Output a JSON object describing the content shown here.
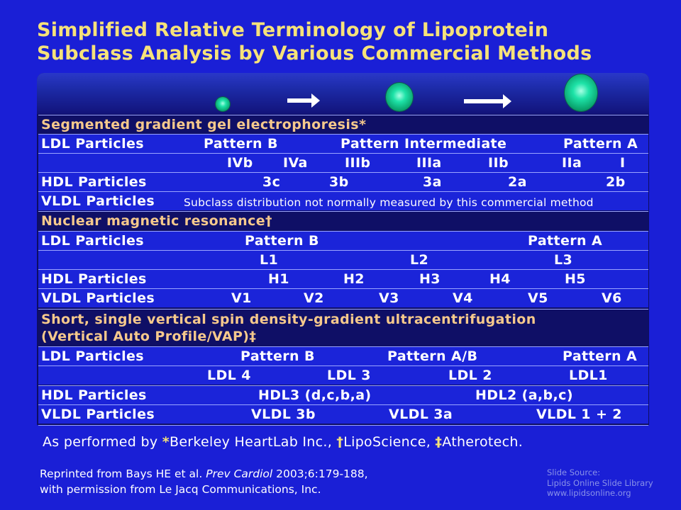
{
  "title": {
    "line1": "Simplified Relative Terminology of Lipoprotein",
    "line2": "Subclass Analysis by Various Commercial Methods"
  },
  "sections": [
    {
      "heading": "Segmented gradient gel electrophoresis*",
      "rows": [
        {
          "label": "LDL Particles",
          "cells": [
            "Pattern B",
            "Pattern Intermediate",
            "Pattern A"
          ]
        },
        {
          "label": "",
          "cells": [
            "IVb",
            "IVa",
            "IIIb",
            "IIIa",
            "IIb",
            "IIa",
            "I"
          ]
        },
        {
          "label": "HDL Particles",
          "cells": [
            "3c",
            "3b",
            "3a",
            "2a",
            "2b"
          ]
        },
        {
          "label": "VLDL Particles",
          "cells": [
            "Subclass distribution not normally measured by this commercial method"
          ]
        }
      ]
    },
    {
      "heading": "Nuclear magnetic resonance†",
      "rows": [
        {
          "label": "LDL Particles",
          "cells": [
            "Pattern B",
            "Pattern A"
          ]
        },
        {
          "label": "",
          "cells": [
            "L1",
            "L2",
            "L3"
          ]
        },
        {
          "label": "HDL Particles",
          "cells": [
            "H1",
            "H2",
            "H3",
            "H4",
            "H5"
          ]
        },
        {
          "label": "VLDL Particles",
          "cells": [
            "V1",
            "V2",
            "V3",
            "V4",
            "V5",
            "V6"
          ]
        }
      ]
    },
    {
      "heading_line1": "Short, single vertical spin density-gradient ultracentrifugation",
      "heading_line2": "(Vertical Auto Profile/VAP)‡",
      "rows": [
        {
          "label": "LDL Particles",
          "cells": [
            "Pattern B",
            "Pattern A/B",
            "Pattern A"
          ]
        },
        {
          "label": "",
          "cells": [
            "LDL 4",
            "LDL 3",
            "LDL 2",
            "LDL1"
          ]
        },
        {
          "label": "HDL Particles",
          "cells": [
            "HDL3 (d,c,b,a)",
            "HDL2 (a,b,c)"
          ]
        },
        {
          "label": "VLDL Particles",
          "cells": [
            "VLDL 3b",
            "VLDL 3a",
            "VLDL 1 + 2"
          ]
        }
      ]
    }
  ],
  "footnote": {
    "prefix": "As performed by ",
    "mark1": "*",
    "text1": "Berkeley HeartLab Inc., ",
    "mark2": "†",
    "text2": "LipoScience, ",
    "mark3": "‡",
    "text3": "Atherotech."
  },
  "citation": {
    "pre": "Reprinted from Bays HE et al. ",
    "journal": "Prev Cardiol",
    "post": " 2003;6:179-188,",
    "line2": "with permission from Le Jacq Communications, Inc."
  },
  "source": {
    "line1": "Slide Source:",
    "line2": "Lipids Online Slide Library",
    "line3": "www.lipidsonline.org"
  },
  "colors": {
    "background": "#1a1fd6",
    "title": "#f6e27a",
    "section_heading": "#f6c98c",
    "particle": "#1ee3a8"
  }
}
